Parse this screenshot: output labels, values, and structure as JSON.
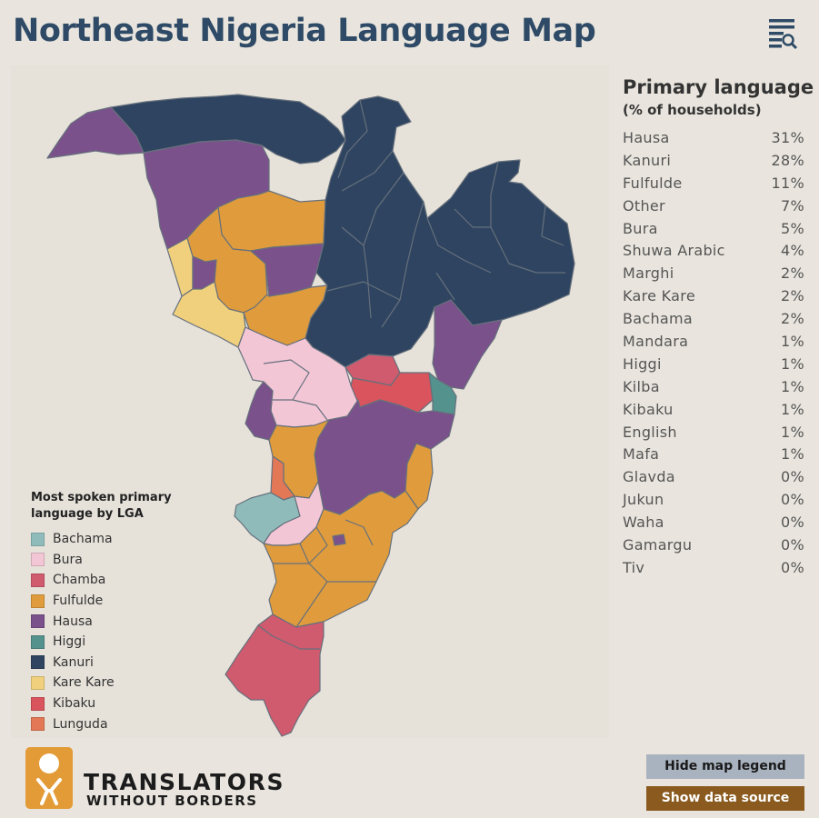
{
  "title": "Northeast Nigeria Language Map",
  "colors": {
    "Bachama": "#8fbcbb",
    "Bura": "#f3c6d6",
    "Chamba": "#d05a6e",
    "Fulfulde": "#e09c3c",
    "Hausa": "#7b518b",
    "Higgi": "#54928d",
    "Kanuri": "#2e4460",
    "Kare Kare": "#f0d07c",
    "Kibaku": "#d9545c",
    "Lunguda": "#e27855"
  },
  "legend": {
    "title_line1": "Most spoken primary",
    "title_line2": "language by LGA",
    "items": [
      {
        "label": "Bachama",
        "color": "#8fbcbb"
      },
      {
        "label": "Bura",
        "color": "#f3c6d6"
      },
      {
        "label": "Chamba",
        "color": "#d05a6e"
      },
      {
        "label": "Fulfulde",
        "color": "#e09c3c"
      },
      {
        "label": "Hausa",
        "color": "#7b518b"
      },
      {
        "label": "Higgi",
        "color": "#54928d"
      },
      {
        "label": "Kanuri",
        "color": "#2e4460"
      },
      {
        "label": "Kare Kare",
        "color": "#f0d07c"
      },
      {
        "label": "Kibaku",
        "color": "#d9545c"
      },
      {
        "label": "Lunguda",
        "color": "#e27855"
      }
    ]
  },
  "primary": {
    "title": "Primary language",
    "subtitle": "(% of households)",
    "rows": [
      {
        "lang": "Hausa",
        "pct": "31%"
      },
      {
        "lang": "Kanuri",
        "pct": "28%"
      },
      {
        "lang": "Fulfulde",
        "pct": "11%"
      },
      {
        "lang": "Other",
        "pct": "7%"
      },
      {
        "lang": "Bura",
        "pct": "5%"
      },
      {
        "lang": "Shuwa Arabic",
        "pct": "4%"
      },
      {
        "lang": "Marghi",
        "pct": "2%"
      },
      {
        "lang": "Kare Kare",
        "pct": "2%"
      },
      {
        "lang": "Bachama",
        "pct": "2%"
      },
      {
        "lang": "Mandara",
        "pct": "1%"
      },
      {
        "lang": "Higgi",
        "pct": "1%"
      },
      {
        "lang": "Kilba",
        "pct": "1%"
      },
      {
        "lang": "Kibaku",
        "pct": "1%"
      },
      {
        "lang": "English",
        "pct": "1%"
      },
      {
        "lang": "Mafa",
        "pct": "1%"
      },
      {
        "lang": "Glavda",
        "pct": "0%"
      },
      {
        "lang": "Jukun",
        "pct": "0%"
      },
      {
        "lang": "Waha",
        "pct": "0%"
      },
      {
        "lang": "Gamargu",
        "pct": "0%"
      },
      {
        "lang": "Tiv",
        "pct": "0%"
      }
    ]
  },
  "logo": {
    "line1": "TRANSLATORS",
    "line2": "WITHOUT BORDERS",
    "color": "#e39b37"
  },
  "buttons": {
    "hide_legend": "Hide map legend",
    "show_source": "Show data source"
  },
  "menu_icon": "menu-search-icon"
}
